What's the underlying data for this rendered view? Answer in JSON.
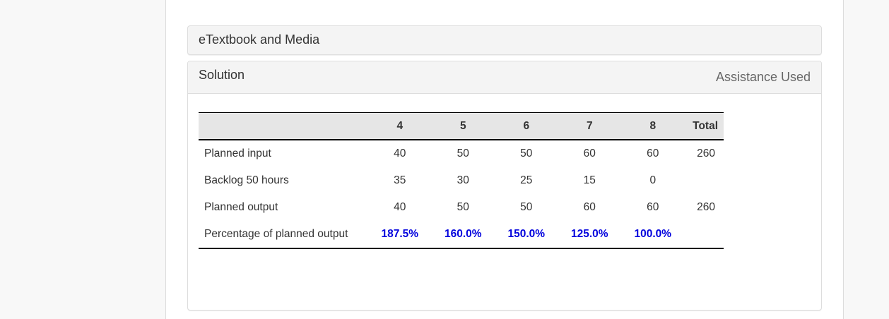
{
  "panels": {
    "media": {
      "title": "eTextbook and Media"
    },
    "solution": {
      "title": "Solution",
      "assistance_label": "Assistance Used"
    }
  },
  "table": {
    "headers": [
      "",
      "4",
      "5",
      "6",
      "7",
      "8",
      "Total"
    ],
    "rows": [
      {
        "label": "Planned input",
        "values": [
          "40",
          "50",
          "50",
          "60",
          "60"
        ],
        "total": "260"
      },
      {
        "label": "Backlog 50 hours",
        "values": [
          "35",
          "30",
          "25",
          "15",
          "0"
        ],
        "total": ""
      },
      {
        "label": "Planned output",
        "values": [
          "40",
          "50",
          "50",
          "60",
          "60"
        ],
        "total": "260"
      },
      {
        "label": "Percentage of planned output",
        "values": [
          "187.5%",
          "160.0%",
          "150.0%",
          "125.0%",
          "100.0%"
        ],
        "total": ""
      }
    ]
  },
  "colors": {
    "highlight_value": "#0000dd",
    "header_bg": "#e6e6e6",
    "panel_bg": "#f4f4f4",
    "page_bg": "#f8f8f8"
  }
}
